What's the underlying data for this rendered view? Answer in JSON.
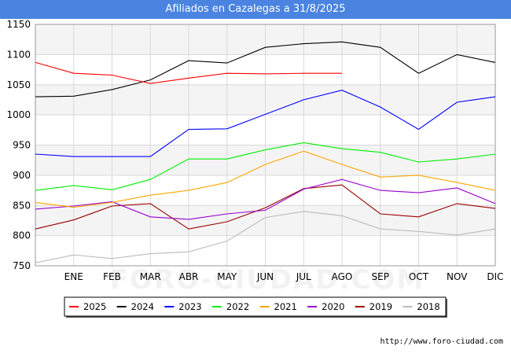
{
  "title": "Afiliados en Cazalegas a 31/8/2025",
  "footer_url": "http://www.foro-ciudad.com",
  "watermark": "FORO-CIUDAD.COM",
  "chart_data": {
    "type": "line",
    "categories": [
      "",
      "ENE",
      "FEB",
      "MAR",
      "ABR",
      "MAY",
      "JUN",
      "JUL",
      "AGO",
      "SEP",
      "OCT",
      "NOV",
      "DIC"
    ],
    "ylim": [
      750,
      1150
    ],
    "yticks": [
      750,
      800,
      850,
      900,
      950,
      1000,
      1050,
      1100,
      1150
    ],
    "grid": true,
    "legend_position": "bottom",
    "series": [
      {
        "name": "2025",
        "color": "#ff0000",
        "values": [
          1087,
          1069,
          1066,
          1052,
          1061,
          1069,
          1068,
          1069,
          1069,
          null,
          null,
          null,
          null
        ]
      },
      {
        "name": "2024",
        "color": "#000000",
        "values": [
          1030,
          1031,
          1042,
          1058,
          1090,
          1086,
          1112,
          1118,
          1121,
          1112,
          1069,
          1100,
          1087
        ]
      },
      {
        "name": "2023",
        "color": "#0000ff",
        "values": [
          935,
          931,
          931,
          931,
          976,
          977,
          1001,
          1025,
          1041,
          1013,
          976,
          1021,
          1030
        ]
      },
      {
        "name": "2022",
        "color": "#00ee00",
        "values": [
          875,
          883,
          876,
          893,
          927,
          927,
          942,
          954,
          944,
          938,
          922,
          927,
          935
        ]
      },
      {
        "name": "2021",
        "color": "#ffa500",
        "values": [
          855,
          847,
          855,
          867,
          875,
          888,
          918,
          940,
          918,
          897,
          900,
          888,
          875
        ]
      },
      {
        "name": "2020",
        "color": "#9900cc",
        "values": [
          844,
          849,
          856,
          831,
          827,
          836,
          842,
          877,
          893,
          875,
          871,
          879,
          853
        ]
      },
      {
        "name": "2019",
        "color": "#990000",
        "values": [
          811,
          826,
          849,
          853,
          811,
          823,
          846,
          878,
          884,
          836,
          831,
          853,
          845
        ]
      },
      {
        "name": "2018",
        "color": "#bbbbbb",
        "values": [
          755,
          768,
          762,
          770,
          773,
          791,
          830,
          840,
          833,
          811,
          807,
          801,
          811
        ]
      }
    ]
  }
}
